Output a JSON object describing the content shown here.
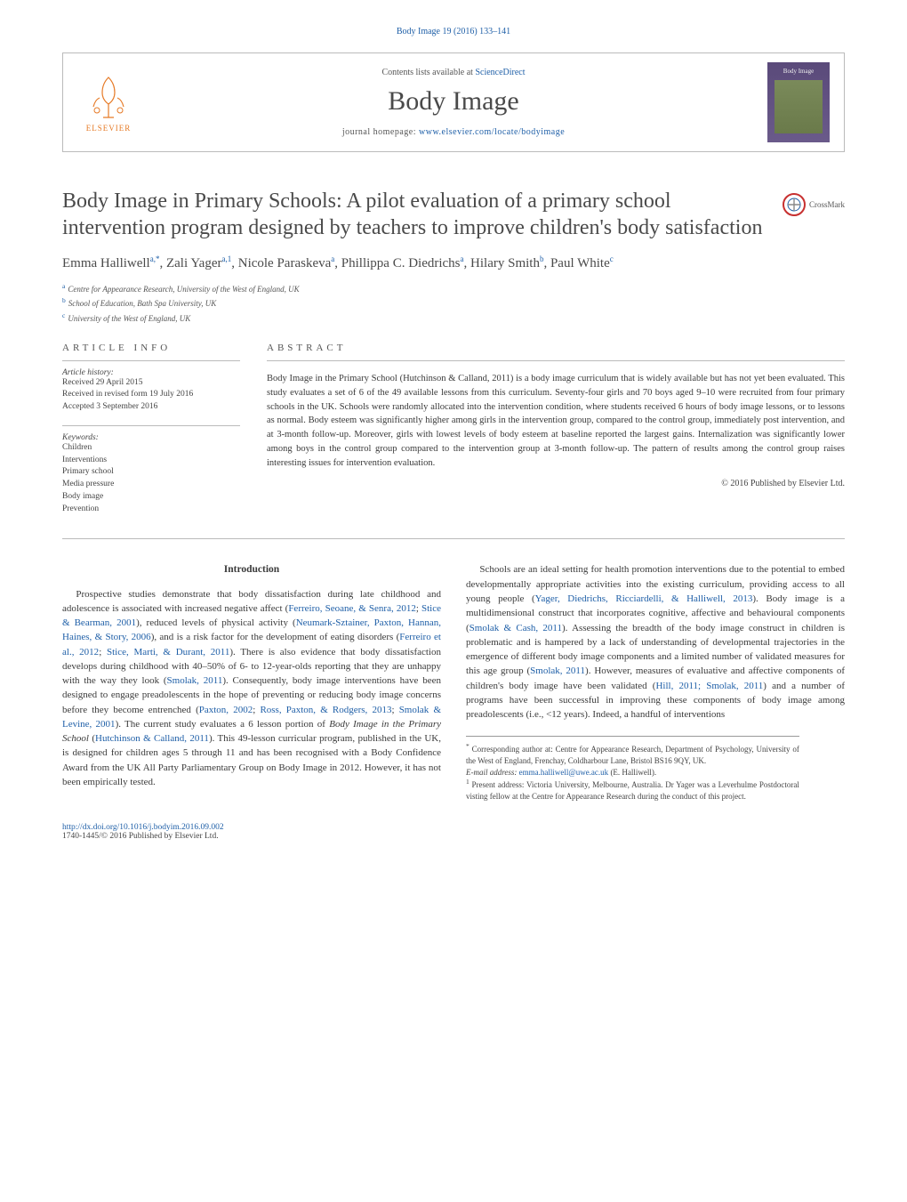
{
  "journal_ref": "Body Image 19 (2016) 133–141",
  "header": {
    "contents_prefix": "Contents lists available at ",
    "contents_link": "ScienceDirect",
    "journal_name": "Body Image",
    "homepage_prefix": "journal homepage: ",
    "homepage_url": "www.elsevier.com/locate/bodyimage",
    "elsevier_label": "ELSEVIER",
    "cover_title": "Body Image"
  },
  "crossmark_label": "CrossMark",
  "title": "Body Image in Primary Schools: A pilot evaluation of a primary school intervention program designed by teachers to improve children's body satisfaction",
  "authors_html": "Emma Halliwell<sup>a,*</sup>, Zali Yager<sup>a,1</sup>, Nicole Paraskeva<sup>a</sup>, Phillippa C. Diedrichs<sup>a</sup>, Hilary Smith<sup>b</sup>, Paul White<sup>c</sup>",
  "affiliations": [
    {
      "sup": "a",
      "text": "Centre for Appearance Research, University of the West of England, UK"
    },
    {
      "sup": "b",
      "text": "School of Education, Bath Spa University, UK"
    },
    {
      "sup": "c",
      "text": "University of the West of England, UK"
    }
  ],
  "article_info": {
    "heading": "article info",
    "history_label": "Article history:",
    "history": [
      "Received 29 April 2015",
      "Received in revised form 19 July 2016",
      "Accepted 3 September 2016"
    ],
    "kw_label": "Keywords:",
    "keywords": [
      "Children",
      "Interventions",
      "Primary school",
      "Media pressure",
      "Body image",
      "Prevention"
    ]
  },
  "abstract": {
    "heading": "abstract",
    "text": "Body Image in the Primary School (Hutchinson & Calland, 2011) is a body image curriculum that is widely available but has not yet been evaluated. This study evaluates a set of 6 of the 49 available lessons from this curriculum. Seventy-four girls and 70 boys aged 9–10 were recruited from four primary schools in the UK. Schools were randomly allocated into the intervention condition, where students received 6 hours of body image lessons, or to lessons as normal. Body esteem was significantly higher among girls in the intervention group, compared to the control group, immediately post intervention, and at 3-month follow-up. Moreover, girls with lowest levels of body esteem at baseline reported the largest gains. Internalization was significantly lower among boys in the control group compared to the intervention group at 3-month follow-up. The pattern of results among the control group raises interesting issues for intervention evaluation.",
    "copyright": "© 2016 Published by Elsevier Ltd."
  },
  "intro_heading": "Introduction",
  "intro_p1_parts": [
    "Prospective studies demonstrate that body dissatisfaction during late childhood and adolescence is associated with increased negative affect (",
    {
      "cite": "Ferreiro, Seoane, & Senra, 2012"
    },
    "; ",
    {
      "cite": "Stice & Bearman, 2001"
    },
    "), reduced levels of physical activity (",
    {
      "cite": "Neumark-Sztainer, Paxton, Hannan, Haines, & Story, 2006"
    },
    "), and is a risk factor for the development of eating disorders (",
    {
      "cite": "Ferreiro et al., 2012"
    },
    "; ",
    {
      "cite": "Stice, Marti, & Durant, 2011"
    },
    "). There is also evidence that body dissatisfaction develops during childhood with 40–50% of 6- to 12-year-olds reporting that they are unhappy with the way they look (",
    {
      "cite": "Smolak, 2011"
    },
    "). Consequently, body image interventions have been designed to engage preadolescents in the hope of preventing or reducing body image concerns before they become entrenched (",
    {
      "cite": "Paxton, 2002"
    },
    "; ",
    {
      "cite": "Ross, Paxton, & Rodgers, 2013"
    },
    "; ",
    {
      "cite": "Smolak & Levine, 2001"
    },
    "). The current study evaluates a 6 lesson portion of ",
    {
      "ital": "Body Image in the Primary School"
    },
    " (",
    {
      "cite": "Hutchinson & Calland, 2011"
    },
    "). This 49-lesson curricular program, published in the UK, is designed for children ages 5 through 11 and has been recognised with a Body Confidence Award from the UK All Party Parliamentary Group on Body Image in 2012. However, it has not been empirically tested."
  ],
  "intro_p2_parts": [
    "Schools are an ideal setting for health promotion interventions due to the potential to embed developmentally appropriate activities into the existing curriculum, providing access to all young people (",
    {
      "cite": "Yager, Diedrichs, Ricciardelli, & Halliwell, 2013"
    },
    "). Body image is a multidimensional construct that incorporates cognitive, affective and behavioural components (",
    {
      "cite": "Smolak & Cash, 2011"
    },
    "). Assessing the breadth of the body image construct in children is problematic and is hampered by a lack of understanding of developmental trajectories in the emergence of different body image components and a limited number of validated measures for this age group (",
    {
      "cite": "Smolak, 2011"
    },
    "). However, measures of evaluative and affective components of children's body image have been validated (",
    {
      "cite": "Hill, 2011; Smolak, 2011"
    },
    ") and a number of programs have been successful in improving these components of body image among preadolescents (i.e., <12 years). Indeed, a handful of interventions"
  ],
  "footnotes": {
    "corr_marker": "*",
    "corr_text": "Corresponding author at: Centre for Appearance Research, Department of Psychology, University of the West of England, Frenchay, Coldharbour Lane, Bristol BS16 9QY, UK.",
    "email_label": "E-mail address:",
    "email": "emma.halliwell@uwe.ac.uk",
    "email_who": "(E. Halliwell).",
    "present_marker": "1",
    "present_text": "Present address: Victoria University, Melbourne, Australia. Dr Yager was a Leverhulme Postdoctoral visting fellow at the Centre for Appearance Research during the conduct of this project."
  },
  "footer": {
    "doi": "http://dx.doi.org/10.1016/j.bodyim.2016.09.002",
    "issn_line": "1740-1445/© 2016 Published by Elsevier Ltd."
  },
  "colors": {
    "link": "#2060a8",
    "text": "#3a3a3a",
    "muted": "#555555",
    "elsevier_orange": "#e67a26",
    "cover_top": "#5a4a7a",
    "cover_bottom": "#6a5a8a"
  }
}
